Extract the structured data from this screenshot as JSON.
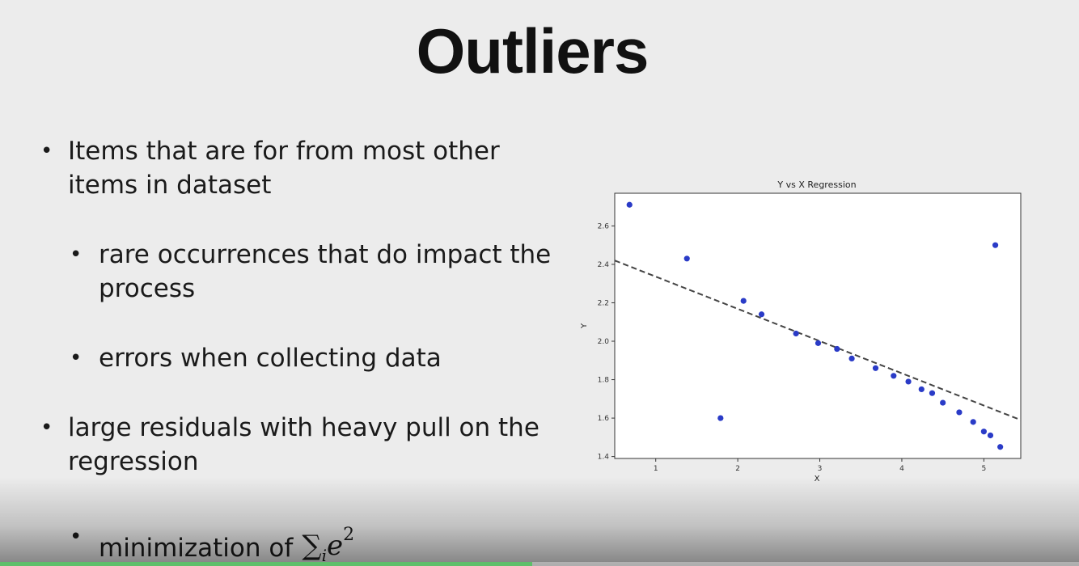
{
  "slide": {
    "title": "Outliers",
    "bullets": [
      {
        "level": 1,
        "text": "Items that are for from most other items in dataset"
      },
      {
        "level": 2,
        "text": "rare occurrences that do impact the process"
      },
      {
        "level": 2,
        "text": "errors when collecting data"
      },
      {
        "level": 1,
        "text": "large residuals with heavy pull on the regression"
      },
      {
        "level": 2,
        "text": "minimization of"
      }
    ],
    "bullet_glyph": "•",
    "formula": {
      "sum": "∑",
      "index": "i",
      "base": "e",
      "exponent": "2"
    }
  },
  "chart_data": {
    "type": "scatter",
    "title": "Y vs X Regression",
    "xlabel": "X",
    "ylabel": "Y",
    "xlim": [
      0.5,
      5.45
    ],
    "ylim": [
      1.39,
      2.77
    ],
    "xticks": [
      1,
      2,
      3,
      4,
      5
    ],
    "yticks": [
      1.4,
      1.6,
      1.8,
      2.0,
      2.2,
      2.4,
      2.6
    ],
    "grid": false,
    "points": [
      {
        "x": 0.68,
        "y": 2.71
      },
      {
        "x": 1.38,
        "y": 2.43
      },
      {
        "x": 1.79,
        "y": 1.6
      },
      {
        "x": 2.07,
        "y": 2.21
      },
      {
        "x": 2.29,
        "y": 2.14
      },
      {
        "x": 2.71,
        "y": 2.04
      },
      {
        "x": 2.98,
        "y": 1.99
      },
      {
        "x": 3.21,
        "y": 1.96
      },
      {
        "x": 3.39,
        "y": 1.91
      },
      {
        "x": 3.68,
        "y": 1.86
      },
      {
        "x": 3.9,
        "y": 1.82
      },
      {
        "x": 4.08,
        "y": 1.79
      },
      {
        "x": 4.24,
        "y": 1.75
      },
      {
        "x": 4.37,
        "y": 1.73
      },
      {
        "x": 4.5,
        "y": 1.68
      },
      {
        "x": 4.7,
        "y": 1.63
      },
      {
        "x": 4.87,
        "y": 1.58
      },
      {
        "x": 5.0,
        "y": 1.53
      },
      {
        "x": 5.08,
        "y": 1.51
      },
      {
        "x": 5.14,
        "y": 2.5
      },
      {
        "x": 5.2,
        "y": 1.45
      }
    ],
    "regression_line": {
      "x": [
        0.5,
        5.45
      ],
      "y": [
        2.42,
        1.59
      ],
      "style": "dashed"
    },
    "point_color": "#2a3bc7",
    "line_color": "#444444"
  },
  "player": {
    "progress": 0.493,
    "progress_color": "#5fbf6a"
  }
}
